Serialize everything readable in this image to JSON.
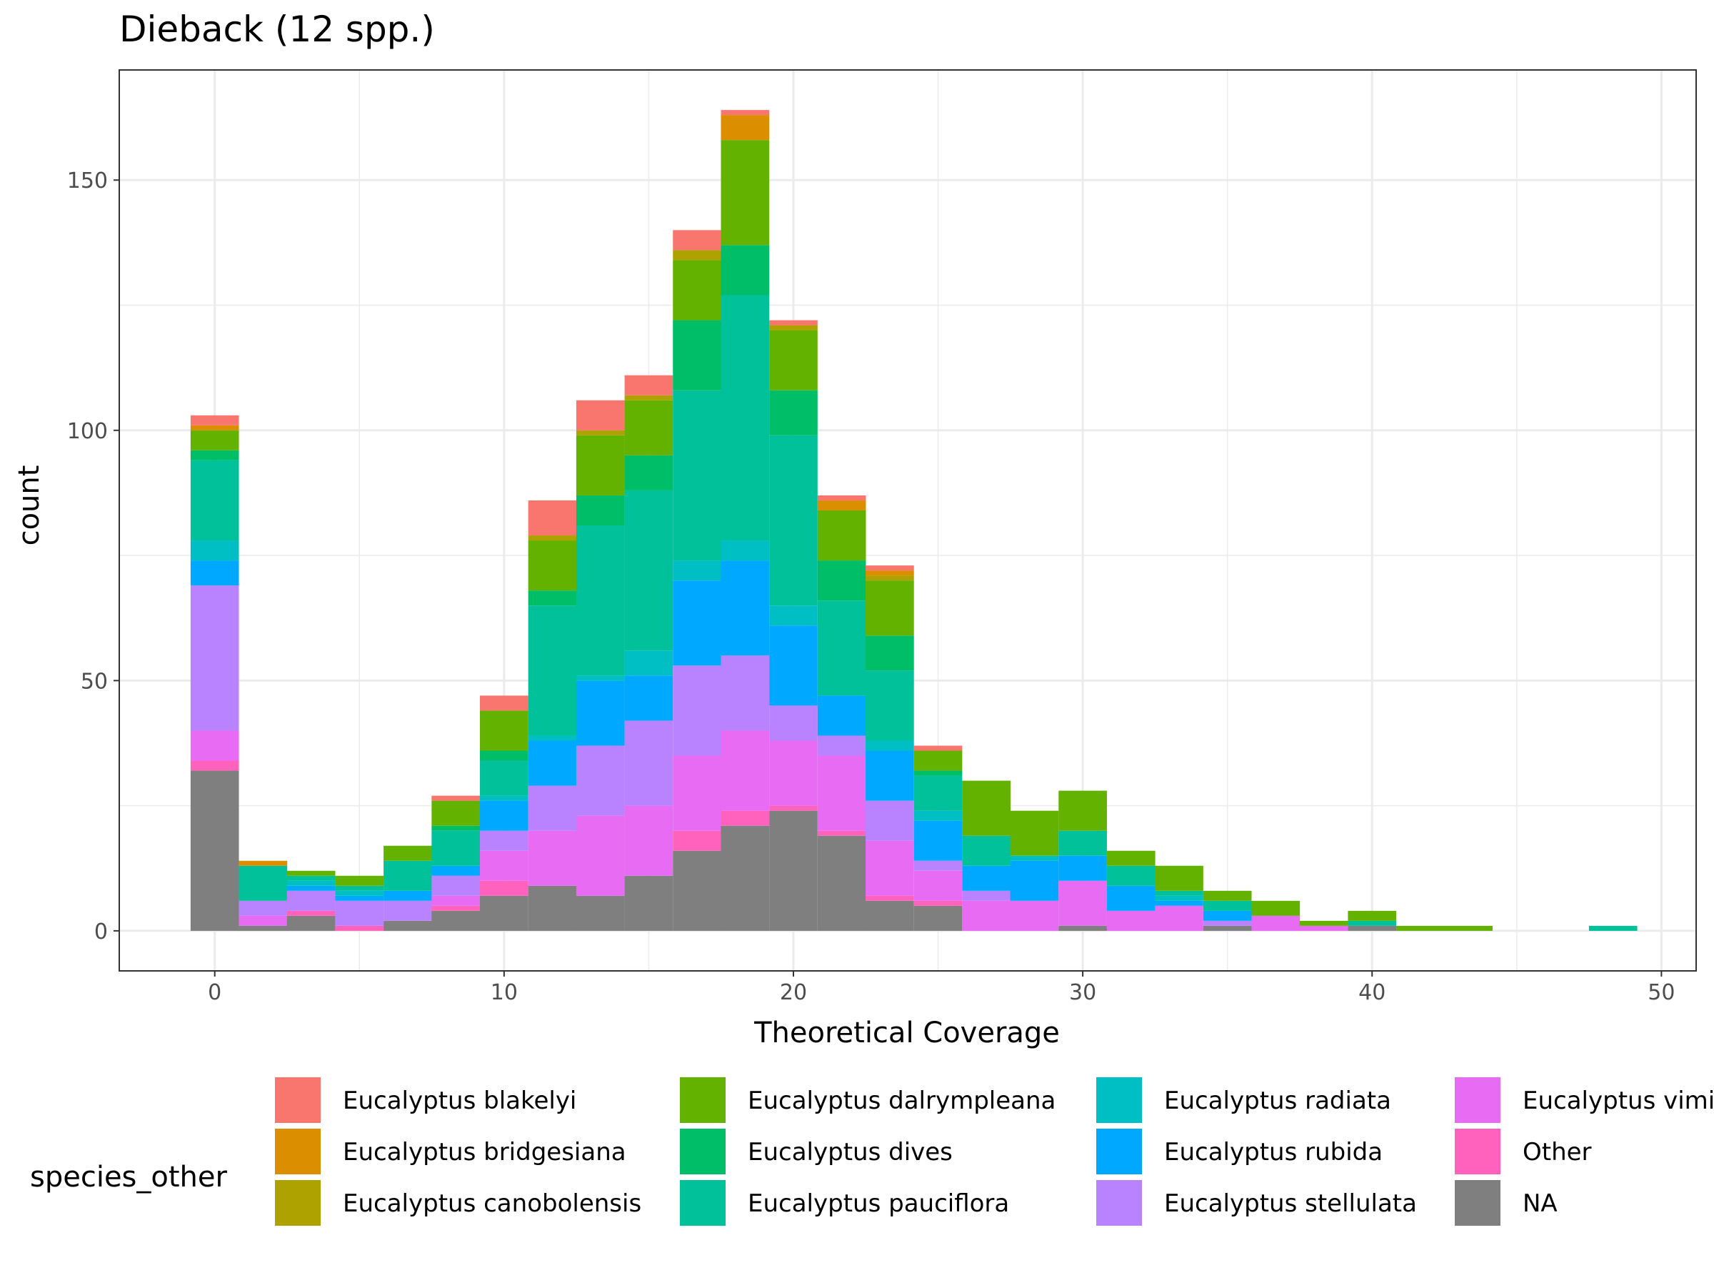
{
  "chart_data": {
    "type": "bar",
    "stacked": true,
    "title": "Dieback (12 spp.)",
    "xlabel": "Theoretical Coverage",
    "ylabel": "count",
    "xlim": [
      -3.3,
      51.2
    ],
    "ylim": [
      -8,
      172
    ],
    "x_ticks": [
      0,
      10,
      20,
      30,
      40,
      50
    ],
    "y_ticks": [
      0,
      50,
      100,
      150
    ],
    "grid": true,
    "legend_position": "bottom",
    "legend_title": "species_other",
    "bin_width": 1.67,
    "x": [
      0,
      1.67,
      3.33,
      5,
      6.67,
      8.33,
      10,
      11.67,
      13.33,
      15,
      16.67,
      18.33,
      20,
      21.67,
      23.33,
      25,
      26.67,
      28.33,
      30,
      31.67,
      33.33,
      35,
      36.67,
      38.33,
      40,
      41.67,
      43.33,
      45,
      46.67,
      48.33
    ],
    "series": [
      {
        "name": "NA",
        "color": "#7F7F7F",
        "values": [
          32,
          1,
          3,
          0,
          2,
          4,
          7,
          9,
          7,
          11,
          16,
          21,
          24,
          19,
          6,
          5,
          0,
          0,
          1,
          0,
          0,
          1,
          0,
          0,
          1,
          0,
          0,
          0,
          0,
          0
        ]
      },
      {
        "name": "Other",
        "color": "#FF62BC",
        "values": [
          2,
          0,
          1,
          1,
          0,
          1,
          3,
          0,
          0,
          0,
          4,
          3,
          1,
          1,
          1,
          1,
          0,
          0,
          0,
          0,
          0,
          0,
          0,
          0,
          0,
          0,
          0,
          0,
          0,
          0
        ]
      },
      {
        "name": "Eucalyptus viminalis",
        "color": "#E76BF3",
        "values": [
          6,
          2,
          0,
          0,
          0,
          2,
          6,
          11,
          16,
          14,
          15,
          16,
          13,
          15,
          11,
          6,
          6,
          6,
          9,
          4,
          5,
          0,
          3,
          1,
          0,
          0,
          0,
          0,
          0,
          0
        ]
      },
      {
        "name": "Eucalyptus stellulata",
        "color": "#B983FF",
        "values": [
          29,
          3,
          4,
          5,
          4,
          4,
          4,
          9,
          14,
          17,
          18,
          15,
          7,
          4,
          8,
          2,
          2,
          0,
          0,
          0,
          0,
          1,
          0,
          0,
          0,
          0,
          0,
          0,
          0,
          0
        ]
      },
      {
        "name": "Eucalyptus rubida",
        "color": "#00A9FF",
        "values": [
          5,
          0,
          1,
          1,
          2,
          2,
          6,
          9,
          13,
          9,
          17,
          19,
          16,
          8,
          10,
          8,
          5,
          8,
          5,
          5,
          1,
          2,
          0,
          0,
          0,
          0,
          0,
          0,
          0,
          0
        ]
      },
      {
        "name": "Eucalyptus radiata",
        "color": "#00BFC4",
        "values": [
          4,
          0,
          1,
          1,
          0,
          0,
          1,
          1,
          1,
          5,
          4,
          4,
          4,
          0,
          2,
          2,
          0,
          1,
          0,
          0,
          1,
          0,
          0,
          0,
          0,
          0,
          0,
          0,
          0,
          0
        ]
      },
      {
        "name": "Eucalyptus pauciflora",
        "color": "#00C19A",
        "values": [
          16,
          7,
          1,
          1,
          6,
          7,
          7,
          26,
          30,
          32,
          34,
          49,
          34,
          19,
          14,
          7,
          6,
          0,
          5,
          4,
          1,
          2,
          0,
          0,
          1,
          0,
          0,
          0,
          0,
          1
        ]
      },
      {
        "name": "Eucalyptus dives",
        "color": "#00BE67",
        "values": [
          2,
          0,
          0,
          0,
          0,
          1,
          2,
          3,
          6,
          7,
          14,
          10,
          9,
          8,
          7,
          1,
          0,
          0,
          0,
          0,
          0,
          0,
          0,
          0,
          0,
          0,
          0,
          0,
          0,
          0
        ]
      },
      {
        "name": "Eucalyptus dalrympleana",
        "color": "#64B200",
        "values": [
          4,
          0,
          1,
          2,
          3,
          5,
          8,
          10,
          12,
          11,
          12,
          21,
          12,
          10,
          11,
          4,
          11,
          9,
          8,
          3,
          5,
          2,
          3,
          1,
          2,
          1,
          1,
          0,
          0,
          0
        ]
      },
      {
        "name": "Eucalyptus canobolensis",
        "color": "#AEA200",
        "values": [
          0,
          0,
          0,
          0,
          0,
          0,
          0,
          1,
          1,
          1,
          2,
          0,
          1,
          0,
          1,
          0,
          0,
          0,
          0,
          0,
          0,
          0,
          0,
          0,
          0,
          0,
          0,
          0,
          0,
          0
        ]
      },
      {
        "name": "Eucalyptus bridgesiana",
        "color": "#DB8E00",
        "values": [
          1,
          1,
          0,
          0,
          0,
          0,
          0,
          0,
          0,
          0,
          0,
          5,
          0,
          2,
          1,
          0,
          0,
          0,
          0,
          0,
          0,
          0,
          0,
          0,
          0,
          0,
          0,
          0,
          0,
          0
        ]
      },
      {
        "name": "Eucalyptus blakelyi",
        "color": "#F8766D",
        "values": [
          2,
          0,
          0,
          0,
          0,
          1,
          3,
          7,
          6,
          4,
          4,
          1,
          1,
          1,
          1,
          1,
          0,
          0,
          0,
          0,
          0,
          0,
          0,
          0,
          0,
          0,
          0,
          0,
          0,
          0
        ]
      }
    ],
    "legend_columns": [
      [
        "Eucalyptus blakelyi",
        "Eucalyptus bridgesiana",
        "Eucalyptus canobolensis"
      ],
      [
        "Eucalyptus dalrympleana",
        "Eucalyptus dives",
        "Eucalyptus pauciflora"
      ],
      [
        "Eucalyptus radiata",
        "Eucalyptus rubida",
        "Eucalyptus stellulata"
      ],
      [
        "Eucalyptus viminalis",
        "Other",
        "NA"
      ]
    ]
  }
}
